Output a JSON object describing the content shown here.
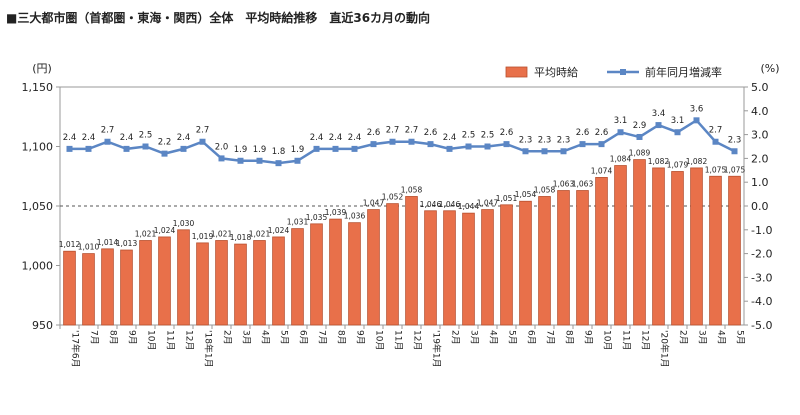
{
  "title": "■三大都市圏（首都圏・東海・関西）全体　平均時給推移　直近36カ月の動向",
  "chart_data": {
    "type": "bar+line",
    "categories": [
      "'17年6月",
      "7月",
      "8月",
      "9月",
      "10月",
      "11月",
      "12月",
      "'18年1月",
      "2月",
      "3月",
      "4月",
      "5月",
      "6月",
      "7月",
      "8月",
      "9月",
      "10月",
      "11月",
      "12月",
      "'19年1月",
      "2月",
      "3月",
      "4月",
      "5月",
      "6月",
      "7月",
      "8月",
      "9月",
      "10月",
      "11月",
      "12月",
      "'20年1月",
      "2月",
      "3月",
      "4月",
      "5月"
    ],
    "series": [
      {
        "name": "平均時給",
        "type": "bar",
        "axis": "left",
        "color": "#E8704A",
        "values": [
          1012,
          1010,
          1014,
          1013,
          1021,
          1024,
          1030,
          1019,
          1021,
          1018,
          1021,
          1024,
          1031,
          1035,
          1039,
          1036,
          1047,
          1052,
          1058,
          1046,
          1046,
          1044,
          1047,
          1051,
          1054,
          1058,
          1063,
          1063,
          1074,
          1084,
          1089,
          1082,
          1079,
          1082,
          1075,
          1075
        ]
      },
      {
        "name": "前年同月増減率",
        "type": "line",
        "axis": "right",
        "color": "#5B86C4",
        "values": [
          2.4,
          2.4,
          2.7,
          2.4,
          2.5,
          2.2,
          2.4,
          2.7,
          2.0,
          1.9,
          1.9,
          1.8,
          1.9,
          2.4,
          2.4,
          2.4,
          2.6,
          2.7,
          2.7,
          2.6,
          2.4,
          2.5,
          2.5,
          2.6,
          2.3,
          2.3,
          2.3,
          2.6,
          2.6,
          3.1,
          2.9,
          3.4,
          3.1,
          3.6,
          2.7,
          2.3
        ]
      }
    ],
    "y_left": {
      "unit": "(円)",
      "ylim": [
        950,
        1150
      ],
      "ticks": [
        "950",
        "1,000",
        "1,050",
        "1,100",
        "1,150"
      ]
    },
    "y_right": {
      "unit": "(%)",
      "ylim": [
        -5.0,
        5.0
      ],
      "ticks": [
        "-5.0",
        "-4.0",
        "-3.0",
        "-2.0",
        "-1.0",
        "0.0",
        "1.0",
        "2.0",
        "3.0",
        "4.0",
        "5.0"
      ]
    },
    "reference_line": {
      "axis": "right",
      "value": 0.0,
      "style": "dashed"
    },
    "legend_position": "top-right",
    "grid": false
  }
}
